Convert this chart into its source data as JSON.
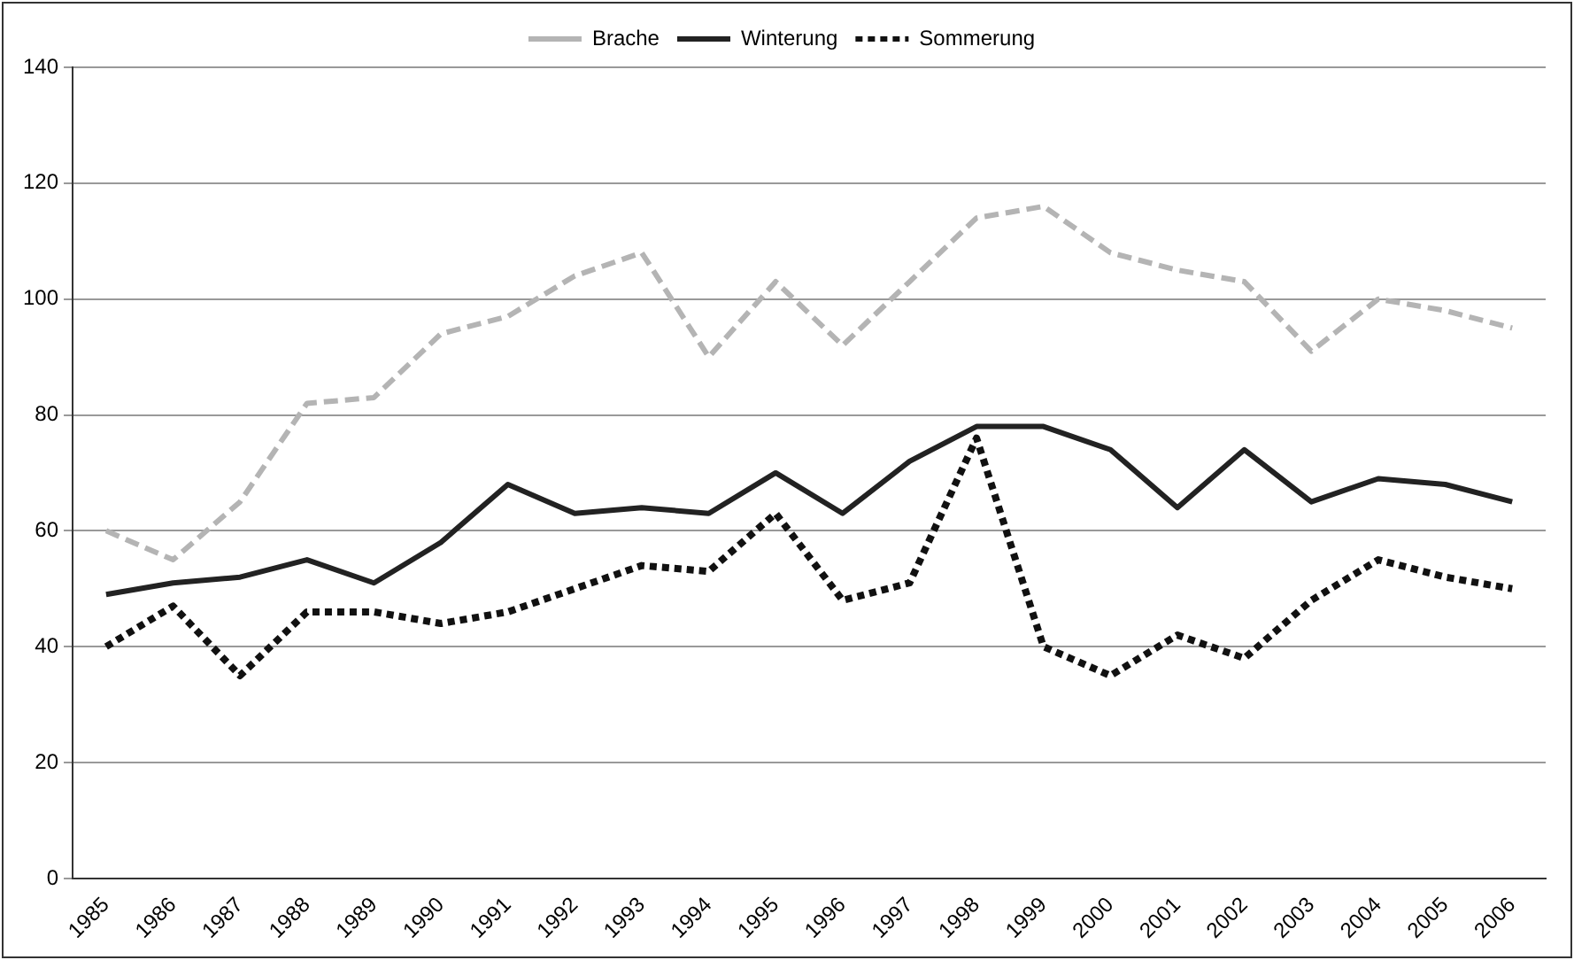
{
  "chart_data": {
    "type": "line",
    "categories": [
      "1985",
      "1986",
      "1987",
      "1988",
      "1989",
      "1990",
      "1991",
      "1992",
      "1993",
      "1994",
      "1995",
      "1996",
      "1997",
      "1998",
      "1999",
      "2000",
      "2001",
      "2002",
      "2003",
      "2004",
      "2005",
      "2006"
    ],
    "series": [
      {
        "name": "Brache",
        "color": "#b4b4b4",
        "line_style": "dashed",
        "values": [
          60,
          55,
          65,
          82,
          83,
          94,
          97,
          104,
          108,
          90,
          103,
          92,
          103,
          114,
          116,
          108,
          105,
          103,
          91,
          100,
          98,
          95
        ]
      },
      {
        "name": "Winterung",
        "color": "#222222",
        "line_style": "solid",
        "values": [
          49,
          51,
          52,
          55,
          51,
          58,
          68,
          63,
          64,
          63,
          70,
          63,
          72,
          78,
          78,
          74,
          64,
          74,
          65,
          69,
          68,
          65
        ]
      },
      {
        "name": "Sommerung",
        "color": "#111111",
        "line_style": "dotted",
        "values": [
          40,
          47,
          35,
          46,
          46,
          44,
          46,
          50,
          54,
          53,
          63,
          48,
          51,
          76,
          40,
          35,
          42,
          38,
          48,
          55,
          52,
          50
        ]
      }
    ],
    "ylim": [
      0,
      140
    ],
    "yticks": [
      0,
      20,
      40,
      60,
      80,
      100,
      120,
      140
    ],
    "grid": "y",
    "legend": "top",
    "marker": "none"
  }
}
